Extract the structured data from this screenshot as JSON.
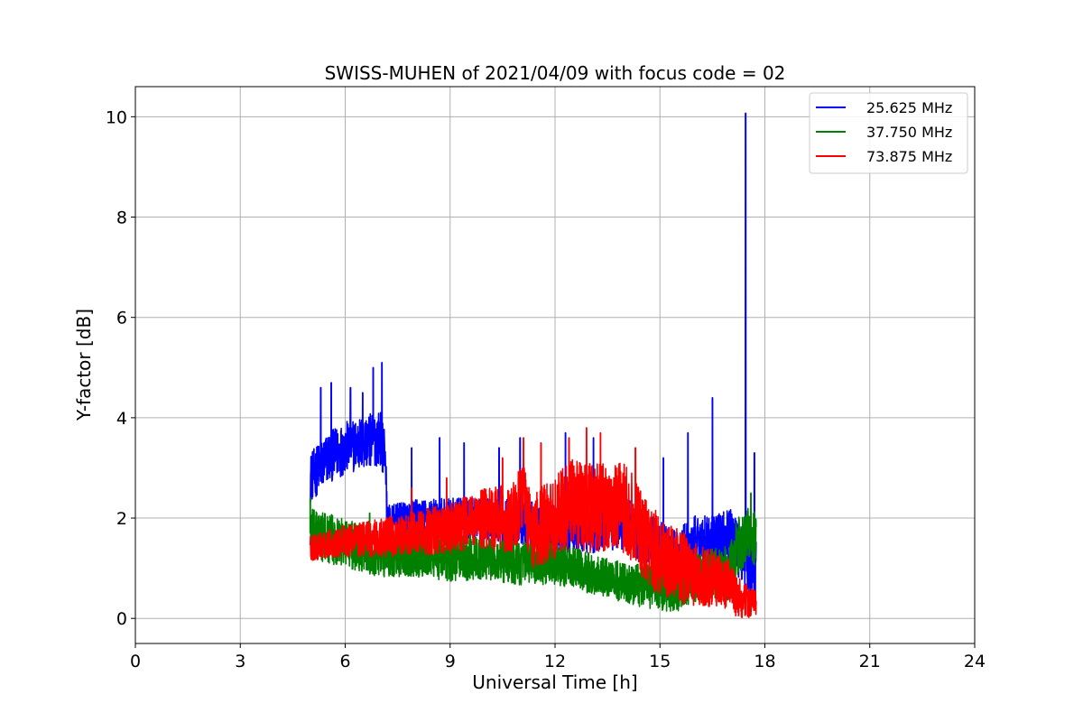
{
  "chart_data": {
    "type": "line",
    "title": "SWISS-MUHEN of 2021/04/09 with focus code = 02",
    "xlabel": "Universal Time [h]",
    "ylabel": "Y-factor [dB]",
    "xlim": [
      0,
      24
    ],
    "ylim": [
      -0.5,
      10.6
    ],
    "xticks": [
      0,
      3,
      6,
      9,
      12,
      15,
      18,
      21,
      24
    ],
    "yticks": [
      0,
      2,
      4,
      6,
      8,
      10
    ],
    "grid": true,
    "legend_position": "top-right",
    "series": [
      {
        "name": "25.625 MHz",
        "color": "#0000ff",
        "profile": [
          [
            5.0,
            2.8
          ],
          [
            5.5,
            3.2
          ],
          [
            6.0,
            3.4
          ],
          [
            6.5,
            3.5
          ],
          [
            7.0,
            3.6
          ],
          [
            7.15,
            3.3
          ],
          [
            7.2,
            1.9
          ],
          [
            8.0,
            2.0
          ],
          [
            9.0,
            2.0
          ],
          [
            10.0,
            2.0
          ],
          [
            11.0,
            1.9
          ],
          [
            12.0,
            1.8
          ],
          [
            13.0,
            1.8
          ],
          [
            14.0,
            1.9
          ],
          [
            15.0,
            1.4
          ],
          [
            15.5,
            1.2
          ],
          [
            16.0,
            1.5
          ],
          [
            16.5,
            1.5
          ],
          [
            17.0,
            1.6
          ],
          [
            17.4,
            1.3
          ],
          [
            17.5,
            1.0
          ],
          [
            17.75,
            1.0
          ]
        ],
        "noise": [
          [
            5.0,
            0.5
          ],
          [
            7.1,
            0.55
          ],
          [
            7.2,
            0.35
          ],
          [
            15.0,
            0.55
          ],
          [
            17.75,
            0.6
          ]
        ],
        "spikes": [
          [
            5.3,
            4.6
          ],
          [
            5.6,
            4.7
          ],
          [
            6.15,
            4.6
          ],
          [
            6.5,
            4.5
          ],
          [
            6.8,
            5.0
          ],
          [
            7.05,
            5.1
          ],
          [
            7.9,
            3.4
          ],
          [
            8.7,
            3.6
          ],
          [
            9.4,
            3.5
          ],
          [
            10.4,
            3.4
          ],
          [
            11.0,
            3.6
          ],
          [
            12.3,
            3.7
          ],
          [
            13.1,
            3.6
          ],
          [
            15.1,
            3.2
          ],
          [
            15.8,
            3.7
          ],
          [
            16.5,
            4.4
          ],
          [
            17.45,
            10.07
          ],
          [
            17.7,
            3.3
          ]
        ],
        "x_range": [
          5.0,
          17.75
        ]
      },
      {
        "name": "37.750 MHz",
        "color": "#008000",
        "profile": [
          [
            5.0,
            1.7
          ],
          [
            6.0,
            1.5
          ],
          [
            7.0,
            1.3
          ],
          [
            8.0,
            1.3
          ],
          [
            9.0,
            1.2
          ],
          [
            10.0,
            1.2
          ],
          [
            11.0,
            1.1
          ],
          [
            12.0,
            1.1
          ],
          [
            13.0,
            0.9
          ],
          [
            14.0,
            0.7
          ],
          [
            15.0,
            0.6
          ],
          [
            15.5,
            0.6
          ],
          [
            16.0,
            0.8
          ],
          [
            17.0,
            0.9
          ],
          [
            17.2,
            1.4
          ],
          [
            17.5,
            1.7
          ],
          [
            17.75,
            1.5
          ]
        ],
        "noise": [
          [
            5.0,
            0.5
          ],
          [
            14.0,
            0.4
          ],
          [
            17.75,
            0.6
          ]
        ],
        "spikes": [
          [
            5.0,
            2.4
          ],
          [
            6.7,
            2.1
          ],
          [
            8.6,
            2.0
          ],
          [
            17.6,
            2.5
          ]
        ],
        "x_range": [
          5.0,
          17.75
        ]
      },
      {
        "name": "73.875 MHz",
        "color": "#ff0000",
        "profile": [
          [
            5.0,
            1.4
          ],
          [
            6.0,
            1.55
          ],
          [
            7.0,
            1.6
          ],
          [
            8.0,
            1.7
          ],
          [
            9.0,
            1.8
          ],
          [
            10.0,
            2.0
          ],
          [
            10.8,
            2.0
          ],
          [
            11.1,
            2.5
          ],
          [
            11.3,
            1.7
          ],
          [
            12.0,
            2.0
          ],
          [
            12.5,
            2.3
          ],
          [
            13.0,
            2.2
          ],
          [
            14.0,
            2.2
          ],
          [
            14.5,
            1.7
          ],
          [
            15.0,
            1.2
          ],
          [
            16.0,
            0.9
          ],
          [
            17.0,
            0.7
          ],
          [
            17.2,
            0.4
          ],
          [
            17.75,
            0.3
          ]
        ],
        "noise": [
          [
            5.0,
            0.25
          ],
          [
            9.5,
            0.55
          ],
          [
            12.5,
            0.9
          ],
          [
            14.5,
            0.9
          ],
          [
            17.0,
            0.5
          ],
          [
            17.75,
            0.25
          ]
        ],
        "spikes": [
          [
            7.9,
            2.6
          ],
          [
            8.9,
            2.8
          ],
          [
            10.5,
            3.2
          ],
          [
            11.1,
            3.6
          ],
          [
            11.6,
            3.5
          ],
          [
            12.4,
            3.6
          ],
          [
            12.9,
            3.8
          ],
          [
            13.3,
            3.7
          ],
          [
            14.3,
            3.4
          ]
        ],
        "x_range": [
          5.0,
          17.75
        ]
      }
    ]
  }
}
